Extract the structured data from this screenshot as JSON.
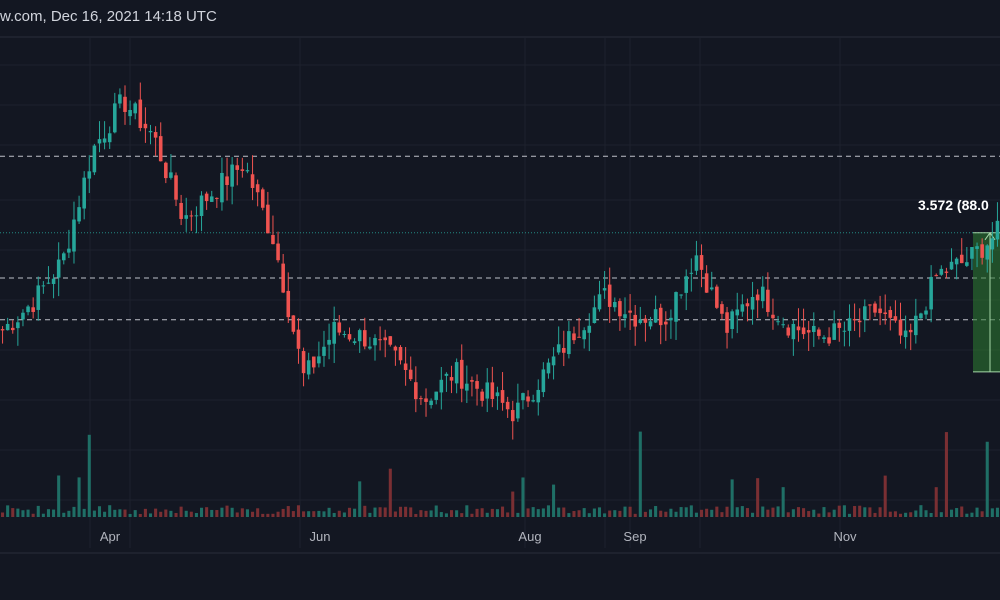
{
  "header": {
    "text": "w.com, Dec 16, 2021 14:18 UTC"
  },
  "colors": {
    "background": "#131722",
    "grid": "#1e222d",
    "up": "#26a69a",
    "down": "#ef5350",
    "up_volume": "#1f6f66",
    "down_volume": "#7a2f33",
    "level_line": "#d1d4dc",
    "highlight_fill": "#2e7d32",
    "highlight_border": "#a5d6a7"
  },
  "annotation": {
    "label": "3.572 (88.0"
  },
  "chart_data": {
    "type": "candlestick",
    "title": "",
    "x_tick_labels": [
      "Apr",
      "Jun",
      "Aug",
      "Sep",
      "Nov"
    ],
    "y_range": [
      0.5,
      7.4
    ],
    "horizontal_levels": [
      5.7,
      3.95,
      3.35
    ],
    "highlight_range": [
      2.6,
      4.6
    ],
    "gridlines": true,
    "series": [
      {
        "description": "Price trend",
        "values": [
          3.2,
          3.6,
          4.2,
          5.8,
          6.5,
          6.0,
          4.8,
          5.2,
          5.6,
          4.5,
          2.5,
          3.2,
          3.1,
          2.8,
          2.2,
          2.6,
          2.3,
          2.0,
          2.6,
          3.2,
          3.7,
          3.4,
          3.4,
          4.3,
          3.2,
          3.8,
          3.3,
          3.1,
          3.2,
          3.5,
          3.0,
          4.0,
          4.2,
          4.6
        ]
      }
    ]
  }
}
